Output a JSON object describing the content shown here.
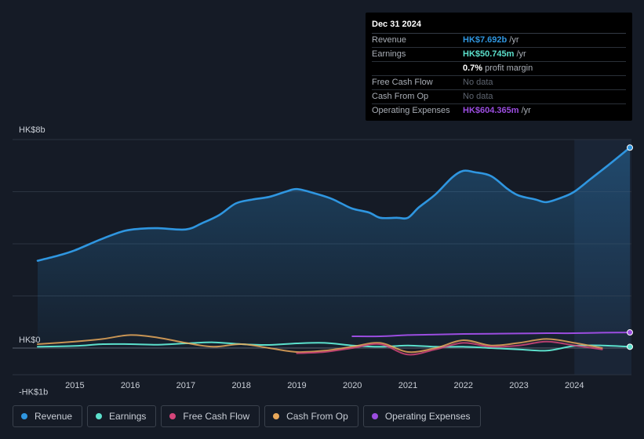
{
  "colors": {
    "revenue": "#2f96e0",
    "earnings": "#5ce0cc",
    "free_cash_flow": "#d4457a",
    "cash_from_op": "#e8a85a",
    "operating_expenses": "#9b4de0"
  },
  "tooltip": {
    "date": "Dec 31 2024",
    "rows": [
      {
        "label": "Revenue",
        "value": "HK$7.692b",
        "unit": "/yr"
      },
      {
        "label": "Earnings",
        "value": "HK$50.745m",
        "unit": "/yr"
      },
      {
        "label": "",
        "value": "0.7%",
        "unit": "profit margin"
      },
      {
        "label": "Free Cash Flow",
        "value": "No data"
      },
      {
        "label": "Cash From Op",
        "value": "No data"
      },
      {
        "label": "Operating Expenses",
        "value": "HK$604.365m",
        "unit": "/yr"
      }
    ]
  },
  "legend": [
    {
      "label": "Revenue",
      "icon": "revenue-dot-icon"
    },
    {
      "label": "Earnings",
      "icon": "earnings-dot-icon"
    },
    {
      "label": "Free Cash Flow",
      "icon": "free-cash-flow-dot-icon"
    },
    {
      "label": "Cash From Op",
      "icon": "cash-from-op-dot-icon"
    },
    {
      "label": "Operating Expenses",
      "icon": "operating-expenses-dot-icon"
    }
  ],
  "chart_data": {
    "type": "area",
    "title": "",
    "xlabel": "",
    "ylabel": "",
    "xlim": [
      2014.33,
      2025.0
    ],
    "ylim": [
      -1,
      8
    ],
    "y_tick_labels": [
      {
        "value": 8,
        "label": "HK$8b"
      },
      {
        "value": 0,
        "label": "HK$0"
      },
      {
        "value": -1,
        "label": "-HK$1b"
      }
    ],
    "x_ticks": [
      {
        "value": 2015,
        "label": "2015"
      },
      {
        "value": 2016,
        "label": "2016"
      },
      {
        "value": 2017,
        "label": "2017"
      },
      {
        "value": 2018,
        "label": "2018"
      },
      {
        "value": 2019,
        "label": "2019"
      },
      {
        "value": 2020,
        "label": "2020"
      },
      {
        "value": 2021,
        "label": "2021"
      },
      {
        "value": 2022,
        "label": "2022"
      },
      {
        "value": 2023,
        "label": "2023"
      },
      {
        "value": 2024,
        "label": "2024"
      }
    ],
    "highlight_from": 2024.0,
    "series": [
      {
        "name": "Revenue",
        "key": "revenue",
        "fill": true,
        "end_marker": true,
        "points": [
          [
            2014.33,
            3.35
          ],
          [
            2014.7,
            3.55
          ],
          [
            2015.0,
            3.75
          ],
          [
            2015.5,
            4.2
          ],
          [
            2015.9,
            4.5
          ],
          [
            2016.2,
            4.58
          ],
          [
            2016.5,
            4.6
          ],
          [
            2017.0,
            4.55
          ],
          [
            2017.3,
            4.8
          ],
          [
            2017.6,
            5.1
          ],
          [
            2017.9,
            5.55
          ],
          [
            2018.2,
            5.7
          ],
          [
            2018.5,
            5.8
          ],
          [
            2018.8,
            6.0
          ],
          [
            2019.0,
            6.1
          ],
          [
            2019.3,
            5.95
          ],
          [
            2019.6,
            5.75
          ],
          [
            2019.8,
            5.55
          ],
          [
            2020.0,
            5.35
          ],
          [
            2020.3,
            5.2
          ],
          [
            2020.5,
            5.0
          ],
          [
            2020.8,
            5.0
          ],
          [
            2021.0,
            5.0
          ],
          [
            2021.2,
            5.4
          ],
          [
            2021.5,
            5.9
          ],
          [
            2021.8,
            6.55
          ],
          [
            2022.0,
            6.8
          ],
          [
            2022.2,
            6.75
          ],
          [
            2022.5,
            6.6
          ],
          [
            2022.8,
            6.1
          ],
          [
            2023.0,
            5.85
          ],
          [
            2023.3,
            5.7
          ],
          [
            2023.5,
            5.6
          ],
          [
            2023.8,
            5.8
          ],
          [
            2024.0,
            6.0
          ],
          [
            2024.3,
            6.5
          ],
          [
            2024.6,
            7.0
          ],
          [
            2025.0,
            7.69
          ]
        ]
      },
      {
        "name": "Earnings",
        "key": "earnings",
        "fill": false,
        "end_marker": true,
        "points": [
          [
            2014.33,
            0.05
          ],
          [
            2015.0,
            0.08
          ],
          [
            2015.5,
            0.15
          ],
          [
            2016.0,
            0.15
          ],
          [
            2016.5,
            0.13
          ],
          [
            2017.0,
            0.18
          ],
          [
            2017.5,
            0.22
          ],
          [
            2018.0,
            0.15
          ],
          [
            2018.5,
            0.12
          ],
          [
            2019.0,
            0.18
          ],
          [
            2019.5,
            0.2
          ],
          [
            2020.0,
            0.1
          ],
          [
            2020.5,
            0.05
          ],
          [
            2021.0,
            0.1
          ],
          [
            2021.5,
            0.05
          ],
          [
            2022.0,
            0.05
          ],
          [
            2022.5,
            0.0
          ],
          [
            2023.0,
            -0.05
          ],
          [
            2023.5,
            -0.1
          ],
          [
            2024.0,
            0.08
          ],
          [
            2024.5,
            0.1
          ],
          [
            2025.0,
            0.05
          ]
        ]
      },
      {
        "name": "Free Cash Flow",
        "key": "free_cash_flow",
        "fill": false,
        "end_marker": false,
        "points": [
          [
            2019.0,
            -0.2
          ],
          [
            2019.5,
            -0.15
          ],
          [
            2020.0,
            0.0
          ],
          [
            2020.5,
            0.15
          ],
          [
            2021.0,
            -0.25
          ],
          [
            2021.5,
            -0.05
          ],
          [
            2022.0,
            0.2
          ],
          [
            2022.5,
            0.05
          ],
          [
            2023.0,
            0.1
          ],
          [
            2023.5,
            0.25
          ],
          [
            2024.0,
            0.1
          ],
          [
            2024.5,
            -0.05
          ]
        ]
      },
      {
        "name": "Cash From Op",
        "key": "cash_from_op",
        "fill": false,
        "end_marker": false,
        "points": [
          [
            2014.33,
            0.15
          ],
          [
            2015.0,
            0.25
          ],
          [
            2015.5,
            0.35
          ],
          [
            2016.0,
            0.5
          ],
          [
            2016.5,
            0.4
          ],
          [
            2017.0,
            0.2
          ],
          [
            2017.5,
            0.05
          ],
          [
            2018.0,
            0.15
          ],
          [
            2018.5,
            0.0
          ],
          [
            2019.0,
            -0.15
          ],
          [
            2019.5,
            -0.1
          ],
          [
            2020.0,
            0.05
          ],
          [
            2020.5,
            0.2
          ],
          [
            2021.0,
            -0.15
          ],
          [
            2021.5,
            0.0
          ],
          [
            2022.0,
            0.3
          ],
          [
            2022.5,
            0.1
          ],
          [
            2023.0,
            0.2
          ],
          [
            2023.5,
            0.35
          ],
          [
            2024.0,
            0.2
          ],
          [
            2024.5,
            0.0
          ]
        ]
      },
      {
        "name": "Operating Expenses",
        "key": "operating_expenses",
        "fill": false,
        "end_marker": true,
        "points": [
          [
            2020.0,
            0.45
          ],
          [
            2020.5,
            0.45
          ],
          [
            2021.0,
            0.5
          ],
          [
            2021.5,
            0.52
          ],
          [
            2022.0,
            0.54
          ],
          [
            2022.5,
            0.55
          ],
          [
            2023.0,
            0.56
          ],
          [
            2023.5,
            0.57
          ],
          [
            2024.0,
            0.57
          ],
          [
            2024.5,
            0.59
          ],
          [
            2025.0,
            0.6
          ]
        ]
      }
    ]
  }
}
